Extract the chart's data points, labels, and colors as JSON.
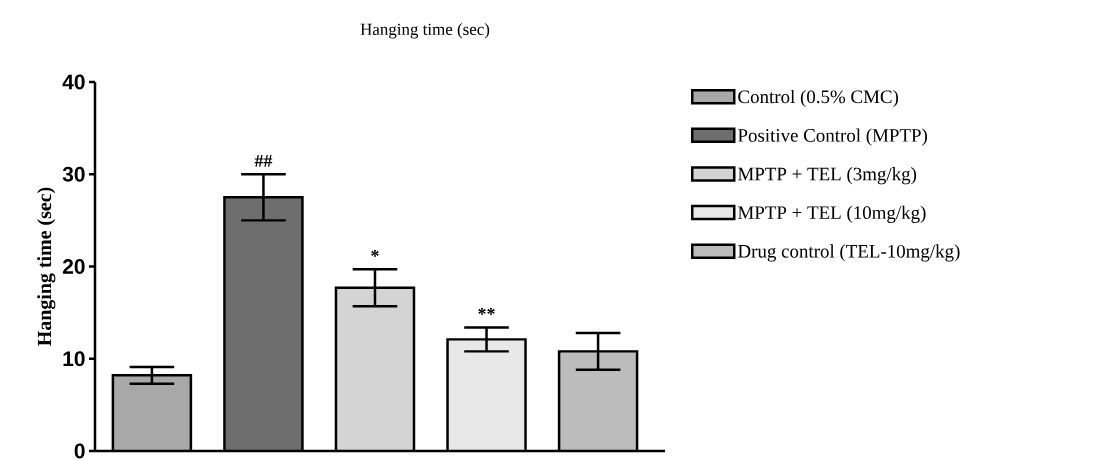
{
  "chart_data": {
    "type": "bar",
    "title": "Hanging time (sec)",
    "ylabel": "Hanging time (sec)",
    "categories": [
      null,
      null,
      null,
      null,
      null
    ],
    "series": [
      {
        "name": "Control (0.5% CMC)",
        "color": "#a8a8a8",
        "values": [
          8.2,
          null,
          null,
          null,
          null
        ],
        "errors": [
          0.9,
          null,
          null,
          null,
          null
        ]
      },
      {
        "name": "Positive Control (MPTP)",
        "color": "#6e6e6e",
        "values": [
          null,
          27.5,
          null,
          null,
          null
        ],
        "errors": [
          null,
          2.5,
          null,
          null,
          null
        ],
        "value_labels": [
          null,
          "##",
          null,
          null,
          null
        ]
      },
      {
        "name": "MPTP  + TEL (3mg/kg)",
        "color": "#d4d4d4",
        "values": [
          null,
          null,
          17.7,
          null,
          null
        ],
        "errors": [
          null,
          null,
          2.0,
          null,
          null
        ],
        "value_labels": [
          null,
          null,
          "*",
          null,
          null
        ]
      },
      {
        "name": "MPTP + TEL (10mg/kg)",
        "color": "#e8e8e8",
        "values": [
          null,
          null,
          null,
          12.1,
          null
        ],
        "errors": [
          null,
          null,
          null,
          1.3,
          null
        ],
        "value_labels": [
          null,
          null,
          null,
          "**",
          null
        ]
      },
      {
        "name": "Drug control (TEL-10mg/kg)",
        "color": "#bcbcbc",
        "values": [
          null,
          null,
          null,
          null,
          10.8
        ],
        "errors": [
          null,
          null,
          null,
          null,
          2.0
        ]
      }
    ],
    "ylim": [
      0,
      40
    ],
    "yticks": [
      0,
      10,
      20,
      30,
      40
    ],
    "legend": "right",
    "grid": false
  }
}
